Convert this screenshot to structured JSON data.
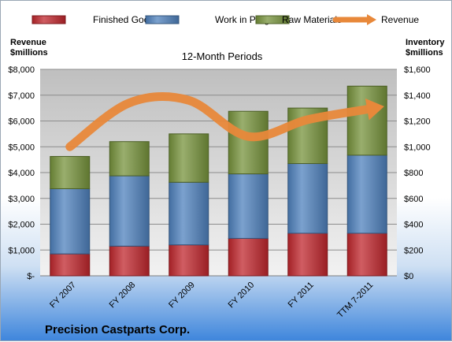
{
  "chart_data": {
    "type": "bar",
    "stacked": true,
    "title": "12-Month Periods",
    "footer": "Precision Castparts Corp.",
    "categories": [
      "FY 2007",
      "FY 2008",
      "FY 2009",
      "FY 2010",
      "FY 2011",
      "TTM 7-2011"
    ],
    "series": [
      {
        "name": "Finished Goods",
        "axis": "right",
        "color": "#c0272d",
        "values": [
          170,
          230,
          240,
          290,
          330,
          330
        ]
      },
      {
        "name": "Work in Progress",
        "axis": "right",
        "color": "#4f81bd",
        "values": [
          505,
          545,
          485,
          500,
          540,
          605
        ]
      },
      {
        "name": "Raw Materials",
        "axis": "right",
        "color": "#77933c",
        "values": [
          250,
          265,
          375,
          485,
          430,
          535
        ]
      },
      {
        "name": "Revenue",
        "type": "line",
        "axis": "left",
        "color": "#e8883a",
        "values": [
          5000,
          6700,
          6800,
          5400,
          6050,
          6450
        ]
      }
    ],
    "ylabel_left": [
      "Revenue",
      "$millions"
    ],
    "ylabel_right": [
      "Inventory",
      "$millions"
    ],
    "yticks_left": [
      "$8,000",
      "$7,000",
      "$6,000",
      "$5,000",
      "$4,000",
      "$3,000",
      "$2,000",
      "$1,000",
      "$-"
    ],
    "yticks_right": [
      "$1,600",
      "$1,400",
      "$1,200",
      "$1,000",
      "$800",
      "$600",
      "$400",
      "$200",
      "$0"
    ],
    "ylim_left": [
      0,
      8000
    ],
    "ylim_right": [
      0,
      1600
    ],
    "grid": true,
    "legend": "top"
  }
}
